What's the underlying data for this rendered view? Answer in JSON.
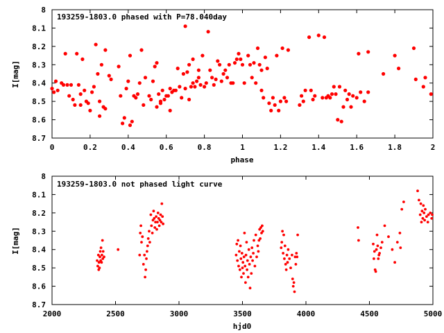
{
  "chart_data": [
    {
      "type": "scatter",
      "title": "193259-1803.0 phased with P=78.040day",
      "xlabel": "phase",
      "ylabel": "I[mag]",
      "xlim": [
        0,
        2
      ],
      "ylim": [
        8.7,
        8
      ],
      "y_inverted": true,
      "grid": false,
      "color": "#ff0000",
      "x_ticks": [
        "0",
        "0.2",
        "0.4",
        "0.6",
        "0.8",
        "1",
        "1.2",
        "1.4",
        "1.6",
        "1.8",
        "2"
      ],
      "y_ticks": [
        "8",
        "8.1",
        "8.2",
        "8.3",
        "8.4",
        "8.5",
        "8.6",
        "8.7"
      ],
      "points": [
        [
          0.0,
          8.43
        ],
        [
          0.01,
          8.45
        ],
        [
          0.02,
          8.39
        ],
        [
          0.03,
          8.44
        ],
        [
          0.05,
          8.4
        ],
        [
          0.06,
          8.41
        ],
        [
          0.07,
          8.24
        ],
        [
          0.08,
          8.41
        ],
        [
          0.09,
          8.47
        ],
        [
          0.1,
          8.41
        ],
        [
          0.11,
          8.49
        ],
        [
          0.12,
          8.52
        ],
        [
          0.13,
          8.24
        ],
        [
          0.14,
          8.41
        ],
        [
          0.15,
          8.52
        ],
        [
          0.15,
          8.46
        ],
        [
          0.16,
          8.27
        ],
        [
          0.17,
          8.44
        ],
        [
          0.18,
          8.5
        ],
        [
          0.19,
          8.51
        ],
        [
          0.2,
          8.55
        ],
        [
          0.21,
          8.45
        ],
        [
          0.22,
          8.42
        ],
        [
          0.23,
          8.19
        ],
        [
          0.24,
          8.35
        ],
        [
          0.25,
          8.5
        ],
        [
          0.25,
          8.58
        ],
        [
          0.26,
          8.3
        ],
        [
          0.27,
          8.53
        ],
        [
          0.28,
          8.22
        ],
        [
          0.28,
          8.54
        ],
        [
          0.3,
          8.36
        ],
        [
          0.31,
          8.38
        ],
        [
          0.35,
          8.31
        ],
        [
          0.36,
          8.47
        ],
        [
          0.37,
          8.62
        ],
        [
          0.38,
          8.59
        ],
        [
          0.39,
          8.43
        ],
        [
          0.4,
          8.39
        ],
        [
          0.41,
          8.25
        ],
        [
          0.41,
          8.63
        ],
        [
          0.42,
          8.61
        ],
        [
          0.43,
          8.47
        ],
        [
          0.44,
          8.48
        ],
        [
          0.45,
          8.46
        ],
        [
          0.46,
          8.4
        ],
        [
          0.47,
          8.22
        ],
        [
          0.48,
          8.52
        ],
        [
          0.49,
          8.37
        ],
        [
          0.51,
          8.47
        ],
        [
          0.52,
          8.49
        ],
        [
          0.53,
          8.39
        ],
        [
          0.54,
          8.31
        ],
        [
          0.55,
          8.29
        ],
        [
          0.55,
          8.53
        ],
        [
          0.56,
          8.46
        ],
        [
          0.57,
          8.5
        ],
        [
          0.57,
          8.51
        ],
        [
          0.58,
          8.44
        ],
        [
          0.59,
          8.49
        ],
        [
          0.6,
          8.47
        ],
        [
          0.61,
          8.47
        ],
        [
          0.62,
          8.43
        ],
        [
          0.62,
          8.55
        ],
        [
          0.63,
          8.45
        ],
        [
          0.64,
          8.44
        ],
        [
          0.65,
          8.44
        ],
        [
          0.66,
          8.32
        ],
        [
          0.67,
          8.42
        ],
        [
          0.68,
          8.48
        ],
        [
          0.69,
          8.35
        ],
        [
          0.7,
          8.09
        ],
        [
          0.7,
          8.43
        ],
        [
          0.71,
          8.34
        ],
        [
          0.72,
          8.3
        ],
        [
          0.72,
          8.49
        ],
        [
          0.73,
          8.42
        ],
        [
          0.74,
          8.4
        ],
        [
          0.74,
          8.27
        ],
        [
          0.75,
          8.42
        ],
        [
          0.76,
          8.39
        ],
        [
          0.77,
          8.33
        ],
        [
          0.77,
          8.37
        ],
        [
          0.78,
          8.41
        ],
        [
          0.79,
          8.25
        ],
        [
          0.8,
          8.42
        ],
        [
          0.81,
          8.4
        ],
        [
          0.82,
          8.12
        ],
        [
          0.83,
          8.33
        ],
        [
          0.84,
          8.37
        ],
        [
          0.85,
          8.41
        ],
        [
          0.86,
          8.38
        ],
        [
          0.87,
          8.28
        ],
        [
          0.88,
          8.3
        ],
        [
          0.89,
          8.39
        ],
        [
          0.9,
          8.35
        ],
        [
          0.91,
          8.33
        ],
        [
          0.92,
          8.37
        ],
        [
          0.93,
          8.3
        ],
        [
          0.94,
          8.4
        ],
        [
          0.95,
          8.4
        ],
        [
          0.96,
          8.29
        ],
        [
          0.97,
          8.27
        ],
        [
          0.98,
          8.24
        ],
        [
          0.99,
          8.27
        ],
        [
          1.0,
          8.3
        ],
        [
          1.01,
          8.4
        ],
        [
          1.03,
          8.25
        ],
        [
          1.04,
          8.3
        ],
        [
          1.05,
          8.37
        ],
        [
          1.06,
          8.29
        ],
        [
          1.07,
          8.4
        ],
        [
          1.08,
          8.21
        ],
        [
          1.09,
          8.3
        ],
        [
          1.1,
          8.33
        ],
        [
          1.1,
          8.44
        ],
        [
          1.11,
          8.48
        ],
        [
          1.12,
          8.26
        ],
        [
          1.13,
          8.32
        ],
        [
          1.14,
          8.51
        ],
        [
          1.15,
          8.55
        ],
        [
          1.16,
          8.48
        ],
        [
          1.17,
          8.52
        ],
        [
          1.18,
          8.25
        ],
        [
          1.19,
          8.55
        ],
        [
          1.2,
          8.5
        ],
        [
          1.21,
          8.21
        ],
        [
          1.22,
          8.48
        ],
        [
          1.23,
          8.5
        ],
        [
          1.24,
          8.22
        ],
        [
          1.3,
          8.52
        ],
        [
          1.31,
          8.47
        ],
        [
          1.32,
          8.5
        ],
        [
          1.33,
          8.44
        ],
        [
          1.35,
          8.15
        ],
        [
          1.36,
          8.44
        ],
        [
          1.37,
          8.49
        ],
        [
          1.38,
          8.47
        ],
        [
          1.4,
          8.14
        ],
        [
          1.42,
          8.48
        ],
        [
          1.43,
          8.15
        ],
        [
          1.44,
          8.48
        ],
        [
          1.45,
          8.47
        ],
        [
          1.46,
          8.48
        ],
        [
          1.47,
          8.46
        ],
        [
          1.48,
          8.42
        ],
        [
          1.49,
          8.46
        ],
        [
          1.5,
          8.6
        ],
        [
          1.51,
          8.42
        ],
        [
          1.52,
          8.61
        ],
        [
          1.53,
          8.53
        ],
        [
          1.54,
          8.44
        ],
        [
          1.55,
          8.49
        ],
        [
          1.56,
          8.46
        ],
        [
          1.57,
          8.53
        ],
        [
          1.58,
          8.47
        ],
        [
          1.6,
          8.48
        ],
        [
          1.61,
          8.24
        ],
        [
          1.62,
          8.45
        ],
        [
          1.64,
          8.5
        ],
        [
          1.66,
          8.45
        ],
        [
          1.66,
          8.23
        ],
        [
          1.74,
          8.35
        ],
        [
          1.8,
          8.25
        ],
        [
          1.82,
          8.32
        ],
        [
          1.9,
          8.21
        ],
        [
          1.91,
          8.38
        ],
        [
          1.95,
          8.42
        ],
        [
          1.96,
          8.37
        ],
        [
          1.99,
          8.46
        ]
      ]
    },
    {
      "type": "scatter",
      "title": "193259-1803.0 not phased light curve",
      "xlabel": "hjd0",
      "ylabel": "I[mag]",
      "xlim": [
        2000,
        5000
      ],
      "ylim": [
        8.7,
        8
      ],
      "y_inverted": true,
      "grid": false,
      "color": "#ff0000",
      "x_ticks": [
        "2000",
        "2500",
        "3000",
        "3500",
        "4000",
        "4500",
        "5000"
      ],
      "y_ticks": [
        "8",
        "8.1",
        "8.2",
        "8.3",
        "8.4",
        "8.5",
        "8.6",
        "8.7"
      ],
      "points": [
        [
          2355,
          8.46
        ],
        [
          2360,
          8.49
        ],
        [
          2365,
          8.43
        ],
        [
          2368,
          8.51
        ],
        [
          2370,
          8.47
        ],
        [
          2374,
          8.5
        ],
        [
          2377,
          8.44
        ],
        [
          2380,
          8.41
        ],
        [
          2383,
          8.46
        ],
        [
          2386,
          8.39
        ],
        [
          2390,
          8.47
        ],
        [
          2393,
          8.43
        ],
        [
          2397,
          8.35
        ],
        [
          2400,
          8.45
        ],
        [
          2403,
          8.41
        ],
        [
          2410,
          8.44
        ],
        [
          2520,
          8.4
        ],
        [
          2690,
          8.43
        ],
        [
          2695,
          8.31
        ],
        [
          2700,
          8.27
        ],
        [
          2705,
          8.36
        ],
        [
          2712,
          8.33
        ],
        [
          2720,
          8.48
        ],
        [
          2728,
          8.43
        ],
        [
          2733,
          8.55
        ],
        [
          2738,
          8.51
        ],
        [
          2743,
          8.45
        ],
        [
          2748,
          8.41
        ],
        [
          2753,
          8.38
        ],
        [
          2758,
          8.34
        ],
        [
          2765,
          8.3
        ],
        [
          2770,
          8.36
        ],
        [
          2778,
          8.21
        ],
        [
          2783,
          8.27
        ],
        [
          2790,
          8.31
        ],
        [
          2795,
          8.24
        ],
        [
          2800,
          8.19
        ],
        [
          2805,
          8.23
        ],
        [
          2810,
          8.28
        ],
        [
          2815,
          8.25
        ],
        [
          2820,
          8.22
        ],
        [
          2825,
          8.29
        ],
        [
          2830,
          8.25
        ],
        [
          2835,
          8.2
        ],
        [
          2840,
          8.23
        ],
        [
          2845,
          8.27
        ],
        [
          2850,
          8.24
        ],
        [
          2855,
          8.21
        ],
        [
          2860,
          8.25
        ],
        [
          2865,
          8.15
        ],
        [
          2870,
          8.22
        ],
        [
          2875,
          8.26
        ],
        [
          3450,
          8.43
        ],
        [
          3455,
          8.37
        ],
        [
          3460,
          8.46
        ],
        [
          3465,
          8.35
        ],
        [
          3470,
          8.49
        ],
        [
          3475,
          8.41
        ],
        [
          3480,
          8.51
        ],
        [
          3484,
          8.38
        ],
        [
          3488,
          8.45
        ],
        [
          3492,
          8.55
        ],
        [
          3496,
          8.42
        ],
        [
          3500,
          8.5
        ],
        [
          3504,
          8.47
        ],
        [
          3508,
          8.53
        ],
        [
          3512,
          8.44
        ],
        [
          3516,
          8.31
        ],
        [
          3520,
          8.49
        ],
        [
          3524,
          8.58
        ],
        [
          3528,
          8.43
        ],
        [
          3532,
          8.36
        ],
        [
          3536,
          8.51
        ],
        [
          3540,
          8.46
        ],
        [
          3545,
          8.55
        ],
        [
          3550,
          8.4
        ],
        [
          3555,
          8.48
        ],
        [
          3560,
          8.61
        ],
        [
          3565,
          8.44
        ],
        [
          3570,
          8.53
        ],
        [
          3575,
          8.39
        ],
        [
          3580,
          8.46
        ],
        [
          3585,
          8.42
        ],
        [
          3590,
          8.35
        ],
        [
          3598,
          8.49
        ],
        [
          3605,
          8.32
        ],
        [
          3612,
          8.44
        ],
        [
          3620,
          8.38
        ],
        [
          3625,
          8.41
        ],
        [
          3630,
          8.35
        ],
        [
          3635,
          8.29
        ],
        [
          3640,
          8.34
        ],
        [
          3645,
          8.28
        ],
        [
          3650,
          8.31
        ],
        [
          3655,
          8.27
        ],
        [
          3660,
          8.3
        ],
        [
          3805,
          8.39
        ],
        [
          3810,
          8.36
        ],
        [
          3815,
          8.3
        ],
        [
          3820,
          8.42
        ],
        [
          3825,
          8.32
        ],
        [
          3830,
          8.45
        ],
        [
          3835,
          8.38
        ],
        [
          3840,
          8.48
        ],
        [
          3845,
          8.51
        ],
        [
          3850,
          8.43
        ],
        [
          3855,
          8.47
        ],
        [
          3860,
          8.4
        ],
        [
          3870,
          8.45
        ],
        [
          3880,
          8.5
        ],
        [
          3890,
          8.43
        ],
        [
          3895,
          8.56
        ],
        [
          3900,
          8.6
        ],
        [
          3905,
          8.58
        ],
        [
          3910,
          8.63
        ],
        [
          3915,
          8.44
        ],
        [
          3920,
          8.48
        ],
        [
          3925,
          8.42
        ],
        [
          3930,
          8.44
        ],
        [
          3935,
          8.32
        ],
        [
          4410,
          8.28
        ],
        [
          4415,
          8.35
        ],
        [
          4530,
          8.37
        ],
        [
          4535,
          8.45
        ],
        [
          4540,
          8.41
        ],
        [
          4545,
          8.51
        ],
        [
          4550,
          8.52
        ],
        [
          4555,
          8.4
        ],
        [
          4560,
          8.32
        ],
        [
          4565,
          8.38
        ],
        [
          4570,
          8.45
        ],
        [
          4575,
          8.43
        ],
        [
          4580,
          8.42
        ],
        [
          4590,
          8.39
        ],
        [
          4600,
          8.36
        ],
        [
          4620,
          8.27
        ],
        [
          4650,
          8.33
        ],
        [
          4680,
          8.4
        ],
        [
          4700,
          8.47
        ],
        [
          4720,
          8.36
        ],
        [
          4740,
          8.31
        ],
        [
          4745,
          8.39
        ],
        [
          4755,
          8.18
        ],
        [
          4770,
          8.14
        ],
        [
          4880,
          8.08
        ],
        [
          4890,
          8.13
        ],
        [
          4900,
          8.21
        ],
        [
          4905,
          8.15
        ],
        [
          4910,
          8.25
        ],
        [
          4915,
          8.19
        ],
        [
          4920,
          8.23
        ],
        [
          4925,
          8.16
        ],
        [
          4930,
          8.2
        ],
        [
          4935,
          8.24
        ],
        [
          4940,
          8.18
        ],
        [
          4950,
          8.22
        ],
        [
          4960,
          8.25
        ],
        [
          4965,
          8.21
        ],
        [
          4980,
          8.2
        ],
        [
          4990,
          8.23
        ],
        [
          4995,
          8.21
        ]
      ]
    }
  ]
}
